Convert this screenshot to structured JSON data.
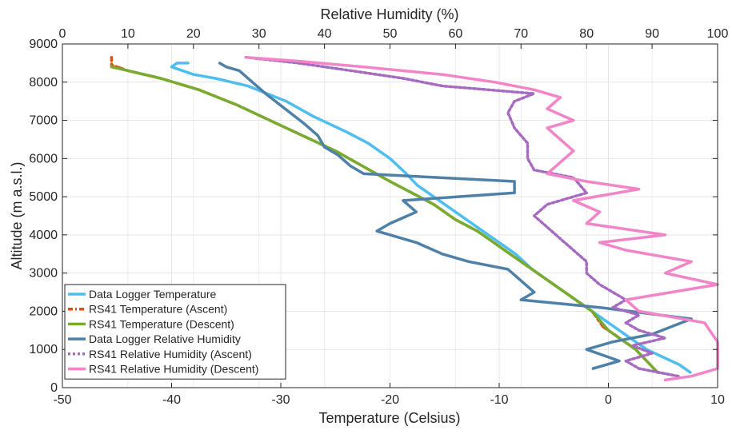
{
  "chart_data": {
    "type": "line",
    "title": "",
    "xlabel": "Temperature (Celsius)",
    "x2label": "Relative Humidity (%)",
    "ylabel": "Altitude (m a.s.l.)",
    "xlim": [
      -50,
      10
    ],
    "x2lim": [
      0,
      100
    ],
    "ylim": [
      0,
      9000
    ],
    "x_ticks": [
      "-50",
      "-40",
      "-30",
      "-20",
      "-10",
      "0",
      "10"
    ],
    "x2_ticks": [
      "0",
      "10",
      "20",
      "30",
      "40",
      "50",
      "60",
      "70",
      "80",
      "90",
      "100"
    ],
    "y_ticks": [
      "0",
      "1000",
      "2000",
      "3000",
      "4000",
      "5000",
      "6000",
      "7000",
      "8000",
      "9000"
    ],
    "grid": true,
    "legend_position": "bottom-left",
    "series": [
      {
        "name": "Data Logger Temperature",
        "axis": "temperature",
        "color": "#4DBEEE",
        "style": "solid",
        "points": [
          [
            7.5,
            400
          ],
          [
            6.5,
            600
          ],
          [
            5,
            800
          ],
          [
            3.5,
            1000
          ],
          [
            2,
            1300
          ],
          [
            0.5,
            1600
          ],
          [
            -1,
            1900
          ],
          [
            -2.5,
            2200
          ],
          [
            -4,
            2500
          ],
          [
            -5.5,
            2800
          ],
          [
            -7,
            3100
          ],
          [
            -8.5,
            3500
          ],
          [
            -10.5,
            3900
          ],
          [
            -12.5,
            4300
          ],
          [
            -14.5,
            4700
          ],
          [
            -16,
            5000
          ],
          [
            -17.5,
            5300
          ],
          [
            -18.5,
            5600
          ],
          [
            -20,
            6000
          ],
          [
            -22,
            6400
          ],
          [
            -24,
            6700
          ],
          [
            -27,
            7100
          ],
          [
            -29.5,
            7500
          ],
          [
            -33,
            7900
          ],
          [
            -36,
            8100
          ],
          [
            -38,
            8200
          ],
          [
            -40,
            8400
          ],
          [
            -39.5,
            8500
          ],
          [
            -38.5,
            8500
          ]
        ]
      },
      {
        "name": "RS41 Temperature (Ascent)",
        "axis": "temperature",
        "color": "#D95319",
        "style": "dashdot",
        "points": [
          [
            4.5,
            400
          ],
          [
            3.5,
            700
          ],
          [
            2.5,
            1000
          ],
          [
            1,
            1300
          ],
          [
            -0.5,
            1600
          ],
          [
            -1.5,
            2000
          ],
          [
            -3,
            2300
          ],
          [
            -4.5,
            2600
          ],
          [
            -6,
            2900
          ],
          [
            -7.5,
            3200
          ],
          [
            -9,
            3500
          ],
          [
            -10.5,
            3800
          ],
          [
            -12,
            4100
          ],
          [
            -14,
            4400
          ],
          [
            -16,
            4800
          ],
          [
            -18,
            5100
          ],
          [
            -20,
            5400
          ],
          [
            -22.5,
            5800
          ],
          [
            -25,
            6200
          ],
          [
            -28,
            6600
          ],
          [
            -31,
            7000
          ],
          [
            -34,
            7400
          ],
          [
            -37.5,
            7800
          ],
          [
            -41,
            8100
          ],
          [
            -44,
            8300
          ],
          [
            -45.5,
            8450
          ],
          [
            -45.5,
            8650
          ]
        ]
      },
      {
        "name": "RS41 Temperature (Descent)",
        "axis": "temperature",
        "color": "#77AC30",
        "style": "solid",
        "points": [
          [
            4.5,
            400
          ],
          [
            3.5,
            700
          ],
          [
            2.5,
            1000
          ],
          [
            1,
            1300
          ],
          [
            0,
            1500
          ],
          [
            -1.5,
            2000
          ],
          [
            -3,
            2300
          ],
          [
            -4.5,
            2600
          ],
          [
            -6,
            2900
          ],
          [
            -7.5,
            3200
          ],
          [
            -9,
            3500
          ],
          [
            -10.5,
            3800
          ],
          [
            -12,
            4100
          ],
          [
            -14,
            4400
          ],
          [
            -16,
            4800
          ],
          [
            -18,
            5100
          ],
          [
            -20,
            5400
          ],
          [
            -22.5,
            5800
          ],
          [
            -25,
            6200
          ],
          [
            -28,
            6600
          ],
          [
            -31,
            7000
          ],
          [
            -34,
            7400
          ],
          [
            -37.5,
            7800
          ],
          [
            -41,
            8100
          ],
          [
            -44,
            8300
          ],
          [
            -45.5,
            8400
          ]
        ]
      },
      {
        "name": "Data Logger Relative Humidity",
        "axis": "humidity",
        "color": "#4F81A8",
        "style": "solid",
        "points": [
          [
            81,
            500
          ],
          [
            85,
            700
          ],
          [
            80,
            1000
          ],
          [
            84,
            1200
          ],
          [
            90,
            1400
          ],
          [
            96,
            1800
          ],
          [
            82,
            2100
          ],
          [
            70,
            2300
          ],
          [
            72,
            2500
          ],
          [
            70,
            2800
          ],
          [
            68,
            3100
          ],
          [
            62,
            3300
          ],
          [
            58,
            3500
          ],
          [
            54,
            3800
          ],
          [
            52,
            3900
          ],
          [
            48,
            4100
          ],
          [
            50,
            4300
          ],
          [
            54,
            4600
          ],
          [
            52,
            4900
          ],
          [
            69,
            5100
          ],
          [
            69,
            5400
          ],
          [
            46,
            5600
          ],
          [
            44,
            5800
          ],
          [
            42,
            6100
          ],
          [
            40,
            6300
          ],
          [
            39,
            6600
          ],
          [
            37,
            6900
          ],
          [
            34,
            7300
          ],
          [
            31,
            7700
          ],
          [
            29,
            8000
          ],
          [
            27,
            8300
          ],
          [
            25,
            8400
          ],
          [
            24,
            8500
          ]
        ]
      },
      {
        "name": "RS41 Relative Humidity (Ascent)",
        "axis": "humidity",
        "color": "#A66BC0",
        "style": "dotted",
        "points": [
          [
            94,
            300
          ],
          [
            88,
            500
          ],
          [
            86,
            700
          ],
          [
            90,
            900
          ],
          [
            87,
            1100
          ],
          [
            92,
            1300
          ],
          [
            88,
            1500
          ],
          [
            86,
            1700
          ],
          [
            88,
            1900
          ],
          [
            84,
            2100
          ],
          [
            86,
            2300
          ],
          [
            82,
            2700
          ],
          [
            80,
            3000
          ],
          [
            80,
            3300
          ],
          [
            78,
            3600
          ],
          [
            76,
            3900
          ],
          [
            74,
            4200
          ],
          [
            72,
            4500
          ],
          [
            74,
            4800
          ],
          [
            80,
            5100
          ],
          [
            78,
            5500
          ],
          [
            72,
            5700
          ],
          [
            71,
            6000
          ],
          [
            71,
            6400
          ],
          [
            69,
            6800
          ],
          [
            68,
            7200
          ],
          [
            69,
            7500
          ],
          [
            72,
            7700
          ],
          [
            58,
            7900
          ],
          [
            52,
            8100
          ],
          [
            44,
            8300
          ],
          [
            36,
            8500
          ],
          [
            28,
            8650
          ]
        ]
      },
      {
        "name": "RS41 Relative Humidity (Descent)",
        "axis": "humidity",
        "color": "#F285C8",
        "style": "solid",
        "points": [
          [
            92,
            200
          ],
          [
            96,
            300
          ],
          [
            100,
            500
          ],
          [
            100,
            1200
          ],
          [
            98,
            1700
          ],
          [
            88,
            2000
          ],
          [
            86,
            2300
          ],
          [
            100,
            2700
          ],
          [
            92,
            3000
          ],
          [
            96,
            3300
          ],
          [
            86,
            3600
          ],
          [
            82,
            3800
          ],
          [
            92,
            4000
          ],
          [
            80,
            4300
          ],
          [
            82,
            4600
          ],
          [
            78,
            4900
          ],
          [
            88,
            5200
          ],
          [
            80,
            5400
          ],
          [
            74,
            5600
          ],
          [
            76,
            5900
          ],
          [
            78,
            6200
          ],
          [
            76,
            6500
          ],
          [
            74,
            6800
          ],
          [
            78,
            7000
          ],
          [
            74,
            7300
          ],
          [
            76,
            7600
          ],
          [
            72,
            7800
          ],
          [
            66,
            8000
          ],
          [
            58,
            8200
          ],
          [
            46,
            8400
          ],
          [
            36,
            8550
          ],
          [
            28,
            8650
          ]
        ]
      }
    ]
  }
}
